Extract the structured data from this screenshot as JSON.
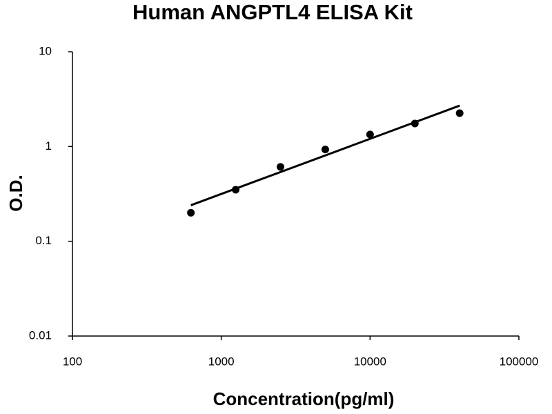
{
  "chart_data": {
    "type": "scatter",
    "title": "Human ANGPTL4 ELISA Kit",
    "x_label": "Concentration(pg/ml)",
    "y_label": "O.D.",
    "x_scale": "log",
    "y_scale": "log",
    "xlim": [
      100,
      100000
    ],
    "ylim": [
      0.01,
      10
    ],
    "xticks": [
      100,
      1000,
      10000,
      100000
    ],
    "yticks": [
      0.01,
      0.1,
      1,
      10
    ],
    "series": [
      {
        "type": "scatter",
        "color": "#000000",
        "x": [
          625,
          1250,
          2500,
          5000,
          10000,
          20000,
          40000
        ],
        "values": [
          0.2,
          0.35,
          0.61,
          0.93,
          1.34,
          1.75,
          2.25
        ]
      },
      {
        "type": "line",
        "color": "#000000",
        "x": [
          625,
          40000
        ],
        "values": [
          0.24,
          2.7
        ]
      }
    ]
  }
}
